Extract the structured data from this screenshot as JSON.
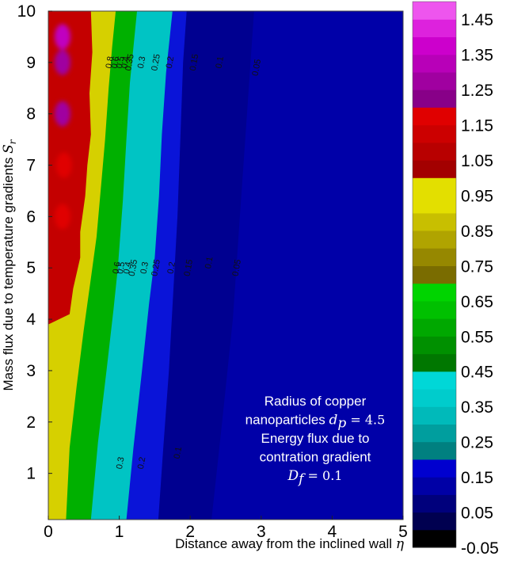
{
  "chart_data": {
    "type": "heatmap",
    "subtype": "filled-contour",
    "xlabel": "Distance away from the inclined wall",
    "xlabel_symbol": "η",
    "ylabel": "Mass flux due to temperature gradients",
    "ylabel_symbol": "S",
    "ylabel_symbol_sub": "r",
    "xlim": [
      0,
      5
    ],
    "ylim": [
      0.1,
      10
    ],
    "x_ticks": [
      0,
      1,
      2,
      3,
      4,
      5
    ],
    "y_ticks": [
      1,
      2,
      3,
      4,
      5,
      6,
      7,
      8,
      9,
      10
    ],
    "colorbar": {
      "range": [
        -0.05,
        1.5
      ],
      "ticks": [
        -0.05,
        0.05,
        0.15,
        0.25,
        0.35,
        0.45,
        0.55,
        0.65,
        0.75,
        0.85,
        0.95,
        1.05,
        1.15,
        1.25,
        1.35,
        1.45
      ],
      "tick_labels": [
        "-0.05",
        "0.05",
        "0.15",
        "0.25",
        "0.35",
        "0.45",
        "0.55",
        "0.65",
        "0.75",
        "0.85",
        "0.95",
        "1.05",
        "1.15",
        "1.25",
        "1.35",
        "1.45"
      ],
      "bands": [
        {
          "from": -0.05,
          "to": 0.0,
          "color": "#000000"
        },
        {
          "from": 0.0,
          "to": 0.05,
          "color": "#000050"
        },
        {
          "from": 0.05,
          "to": 0.1,
          "color": "#00007c"
        },
        {
          "from": 0.1,
          "to": 0.15,
          "color": "#0000a6"
        },
        {
          "from": 0.15,
          "to": 0.2,
          "color": "#0000cf"
        },
        {
          "from": 0.2,
          "to": 0.25,
          "color": "#008080"
        },
        {
          "from": 0.25,
          "to": 0.3,
          "color": "#009e9e"
        },
        {
          "from": 0.3,
          "to": 0.35,
          "color": "#00baba"
        },
        {
          "from": 0.35,
          "to": 0.4,
          "color": "#00cccc"
        },
        {
          "from": 0.4,
          "to": 0.45,
          "color": "#00d7d7"
        },
        {
          "from": 0.45,
          "to": 0.5,
          "color": "#007700"
        },
        {
          "from": 0.5,
          "to": 0.55,
          "color": "#009000"
        },
        {
          "from": 0.55,
          "to": 0.6,
          "color": "#00a800"
        },
        {
          "from": 0.6,
          "to": 0.65,
          "color": "#00c000"
        },
        {
          "from": 0.65,
          "to": 0.7,
          "color": "#00d400"
        },
        {
          "from": 0.7,
          "to": 0.75,
          "color": "#7a6c00"
        },
        {
          "from": 0.75,
          "to": 0.8,
          "color": "#968800"
        },
        {
          "from": 0.8,
          "to": 0.85,
          "color": "#b0a400"
        },
        {
          "from": 0.85,
          "to": 0.9,
          "color": "#c8bf00"
        },
        {
          "from": 0.9,
          "to": 1.0,
          "color": "#e3df00"
        },
        {
          "from": 1.0,
          "to": 1.05,
          "color": "#a30000"
        },
        {
          "from": 1.05,
          "to": 1.1,
          "color": "#b80000"
        },
        {
          "from": 1.1,
          "to": 1.15,
          "color": "#cc0000"
        },
        {
          "from": 1.15,
          "to": 1.2,
          "color": "#e00000"
        },
        {
          "from": 1.2,
          "to": 1.25,
          "color": "#880088"
        },
        {
          "from": 1.25,
          "to": 1.3,
          "color": "#a000a0"
        },
        {
          "from": 1.3,
          "to": 1.35,
          "color": "#b800b8"
        },
        {
          "from": 1.35,
          "to": 1.4,
          "color": "#cc00cc"
        },
        {
          "from": 1.4,
          "to": 1.45,
          "color": "#dd22dd"
        },
        {
          "from": 1.45,
          "to": 1.5,
          "color": "#ee55ee"
        }
      ]
    },
    "contour_bands": [
      {
        "level": 1.0,
        "color": "#c40000",
        "boundary": [
          [
            0.0,
            3.8
          ],
          [
            0.0,
            3.9
          ],
          [
            0.3,
            4.1
          ],
          [
            0.35,
            4.6
          ],
          [
            0.45,
            5.2
          ],
          [
            0.45,
            5.7
          ],
          [
            0.52,
            6.4
          ],
          [
            0.55,
            7.0
          ],
          [
            0.6,
            7.6
          ],
          [
            0.58,
            8.4
          ],
          [
            0.62,
            9.2
          ],
          [
            0.6,
            10.0
          ]
        ]
      },
      {
        "level": 0.7,
        "color": "#d6d000",
        "boundary": [
          [
            0.25,
            0.1
          ],
          [
            0.3,
            1.5
          ],
          [
            0.4,
            2.7
          ],
          [
            0.5,
            3.8
          ],
          [
            0.6,
            4.8
          ],
          [
            0.68,
            5.6
          ],
          [
            0.75,
            6.7
          ],
          [
            0.8,
            7.5
          ],
          [
            0.85,
            8.5
          ],
          [
            0.9,
            9.3
          ],
          [
            0.95,
            10.0
          ]
        ]
      },
      {
        "level": 0.45,
        "color": "#00b000",
        "boundary": [
          [
            0.6,
            0.1
          ],
          [
            0.7,
            1.6
          ],
          [
            0.82,
            3.0
          ],
          [
            0.92,
            4.2
          ],
          [
            0.98,
            5.0
          ],
          [
            1.05,
            6.3
          ],
          [
            1.1,
            7.5
          ],
          [
            1.15,
            8.6
          ],
          [
            1.25,
            10.0
          ]
        ]
      },
      {
        "level": 0.2,
        "color": "#00c4c4",
        "boundary": [
          [
            1.1,
            0.1
          ],
          [
            1.2,
            1.5
          ],
          [
            1.32,
            3.0
          ],
          [
            1.42,
            4.3
          ],
          [
            1.5,
            5.2
          ],
          [
            1.56,
            6.4
          ],
          [
            1.6,
            7.6
          ],
          [
            1.66,
            8.8
          ],
          [
            1.75,
            10.0
          ]
        ]
      },
      {
        "level": 0.1,
        "color": "#0a14d8",
        "boundary": [
          [
            1.55,
            0.1
          ],
          [
            1.62,
            1.5
          ],
          [
            1.7,
            3.0
          ],
          [
            1.76,
            4.5
          ],
          [
            1.82,
            6.0
          ],
          [
            1.86,
            7.5
          ],
          [
            1.9,
            9.0
          ],
          [
            1.95,
            10.0
          ]
        ]
      },
      {
        "level": 0.0,
        "color": "#000090",
        "boundary": [
          [
            2.3,
            0.1
          ],
          [
            2.45,
            2.0
          ],
          [
            2.6,
            4.0
          ],
          [
            2.7,
            6.0
          ],
          [
            2.8,
            8.0
          ],
          [
            2.9,
            10.0
          ]
        ]
      }
    ],
    "background_color": "#0000a8",
    "hotspots": [
      {
        "x": 0.2,
        "y": 9.5,
        "value": 1.3,
        "color": "#c000c0"
      },
      {
        "x": 0.2,
        "y": 9.0,
        "value": 1.25,
        "color": "#a000a0"
      },
      {
        "x": 0.2,
        "y": 8.0,
        "value": 1.25,
        "color": "#a000a0"
      },
      {
        "x": 0.22,
        "y": 7.0,
        "value": 1.2,
        "color": "#e00000"
      },
      {
        "x": 0.2,
        "y": 6.0,
        "value": 1.2,
        "color": "#e00000"
      }
    ],
    "contour_labels": [
      {
        "text": "0.8",
        "x": 0.87,
        "y": 9.0
      },
      {
        "text": "0.6",
        "x": 0.95,
        "y": 9.0
      },
      {
        "text": "0.5",
        "x": 1.02,
        "y": 9.0
      },
      {
        "text": "0.4",
        "x": 1.09,
        "y": 9.0
      },
      {
        "text": "0.35",
        "x": 1.15,
        "y": 9.0
      },
      {
        "text": "0.3",
        "x": 1.32,
        "y": 9.0
      },
      {
        "text": "0.25",
        "x": 1.52,
        "y": 9.0
      },
      {
        "text": "0.2",
        "x": 1.72,
        "y": 9.0
      },
      {
        "text": "0.15",
        "x": 2.06,
        "y": 9.0
      },
      {
        "text": "0.1",
        "x": 2.42,
        "y": 9.0
      },
      {
        "text": "0.05",
        "x": 2.94,
        "y": 8.9
      },
      {
        "text": "0.6",
        "x": 0.97,
        "y": 5.0
      },
      {
        "text": "0.5",
        "x": 1.03,
        "y": 5.0
      },
      {
        "text": "0.4",
        "x": 1.12,
        "y": 5.0
      },
      {
        "text": "0.35",
        "x": 1.2,
        "y": 5.0
      },
      {
        "text": "0.3",
        "x": 1.36,
        "y": 5.0
      },
      {
        "text": "0.25",
        "x": 1.52,
        "y": 5.0
      },
      {
        "text": "0.2",
        "x": 1.74,
        "y": 5.0
      },
      {
        "text": "0.15",
        "x": 1.98,
        "y": 5.0
      },
      {
        "text": "0.1",
        "x": 2.27,
        "y": 5.1
      },
      {
        "text": "0.05",
        "x": 2.66,
        "y": 5.0
      },
      {
        "text": "0.3",
        "x": 1.02,
        "y": 1.2
      },
      {
        "text": "0.2",
        "x": 1.32,
        "y": 1.2
      },
      {
        "text": "0.1",
        "x": 1.83,
        "y": 1.4
      }
    ],
    "annotation": {
      "lines": [
        {
          "text": "Radius of copper"
        },
        {
          "text": "nanoparticles",
          "math": "d",
          "math_sub": "p",
          "math_rest": " = 4.5"
        },
        {
          "text": "Energy flux due to"
        },
        {
          "text": "contration gradient"
        },
        {
          "text": "",
          "math": "D",
          "math_sub": "f",
          "math_rest": " = 0.1"
        }
      ]
    }
  }
}
